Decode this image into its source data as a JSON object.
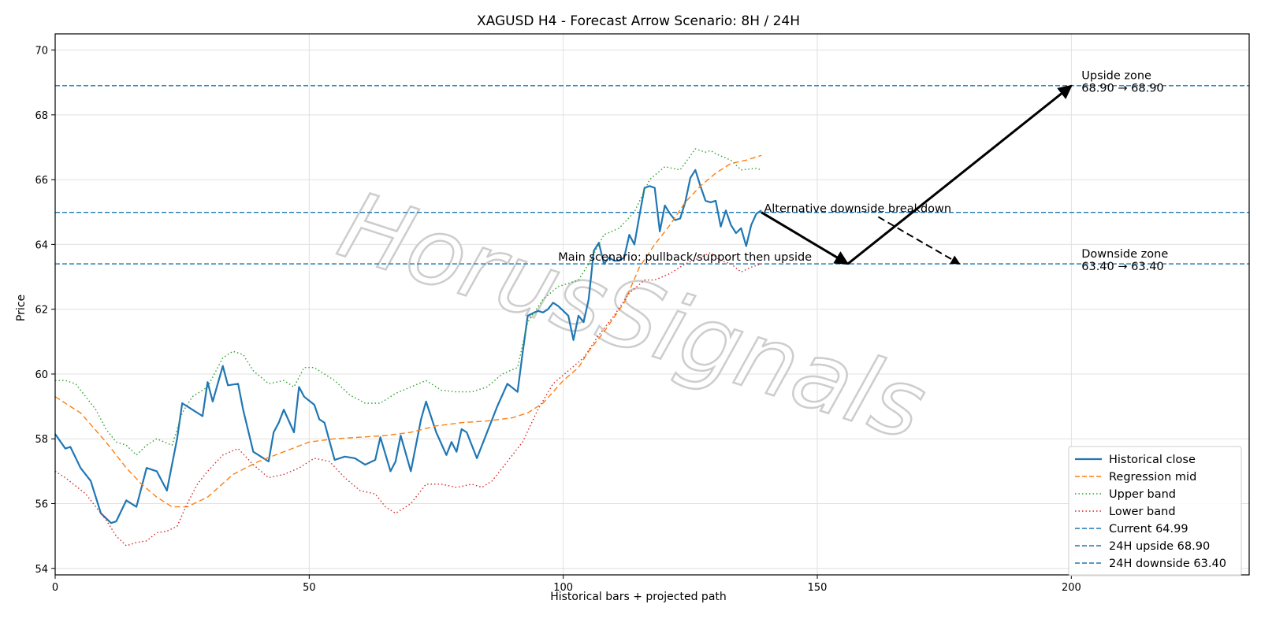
{
  "chart_data": {
    "type": "line",
    "title": "XAGUSD H4 - Forecast Arrow Scenario: 8H / 24H",
    "xlabel": "Historical bars + projected path",
    "ylabel": "Price",
    "xlim": [
      0,
      235
    ],
    "ylim": [
      53.8,
      70.5
    ],
    "xticks": [
      0,
      50,
      100,
      150,
      200
    ],
    "yticks": [
      54,
      56,
      58,
      60,
      62,
      64,
      66,
      68,
      70
    ],
    "grid": true,
    "legend_position": "lower-right",
    "watermark": "HorusSignals",
    "series": [
      {
        "name": "Historical close",
        "color": "#1f77b4",
        "style": "solid",
        "x": [
          0,
          2,
          3,
          5,
          7,
          9,
          11,
          12,
          14,
          16,
          18,
          20,
          22,
          24,
          25,
          27,
          29,
          30,
          31,
          33,
          34,
          36,
          37,
          39,
          40,
          42,
          43,
          44,
          45,
          47,
          48,
          49,
          51,
          52,
          53,
          55,
          57,
          59,
          61,
          63,
          64,
          66,
          67,
          68,
          70,
          72,
          73,
          75,
          77,
          78,
          79,
          80,
          81,
          83,
          85,
          87,
          89,
          91,
          92,
          93,
          95,
          96,
          97,
          98,
          99,
          100,
          101,
          102,
          103,
          104,
          105,
          106,
          107,
          108,
          109,
          110,
          111,
          112,
          113,
          114,
          115,
          116,
          117,
          118,
          119,
          120,
          121,
          122,
          123,
          124,
          125,
          126,
          127,
          128,
          129,
          130,
          131,
          132,
          133,
          134,
          135,
          136,
          137,
          138,
          139
        ],
        "values": [
          58.15,
          57.7,
          57.75,
          57.1,
          56.7,
          55.7,
          55.4,
          55.45,
          56.1,
          55.9,
          57.1,
          57.0,
          56.4,
          58.0,
          59.1,
          58.9,
          58.7,
          59.75,
          59.15,
          60.25,
          59.65,
          59.7,
          58.9,
          57.6,
          57.5,
          57.3,
          58.2,
          58.5,
          58.9,
          58.2,
          59.6,
          59.3,
          59.05,
          58.6,
          58.5,
          57.35,
          57.45,
          57.4,
          57.2,
          57.35,
          58.05,
          57.0,
          57.3,
          58.1,
          57.0,
          58.6,
          59.15,
          58.2,
          57.5,
          57.9,
          57.6,
          58.3,
          58.2,
          57.4,
          58.2,
          59.0,
          59.7,
          59.45,
          60.65,
          61.8,
          61.95,
          61.9,
          62.0,
          62.2,
          62.1,
          61.95,
          61.8,
          61.05,
          61.8,
          61.6,
          62.3,
          63.8,
          64.05,
          63.4,
          63.6,
          63.5,
          63.5,
          63.6,
          64.3,
          64.0,
          64.9,
          65.75,
          65.8,
          65.75,
          64.4,
          65.2,
          64.95,
          64.75,
          64.8,
          65.3,
          66.05,
          66.3,
          65.8,
          65.35,
          65.3,
          65.35,
          64.55,
          65.05,
          64.6,
          64.35,
          64.5,
          63.95,
          64.6,
          64.95,
          65.05
        ]
      },
      {
        "name": "Regression mid",
        "color": "#ff7f0e",
        "style": "dashed",
        "x": [
          0,
          3,
          5,
          10,
          14,
          17,
          20,
          23,
          26,
          30,
          35,
          40,
          45,
          50,
          55,
          60,
          65,
          70,
          75,
          80,
          85,
          90,
          93,
          96,
          100,
          103,
          105,
          108,
          112,
          115,
          118,
          121,
          124,
          127,
          130,
          133,
          136,
          139
        ],
        "values": [
          59.3,
          59.0,
          58.8,
          57.9,
          57.1,
          56.6,
          56.2,
          55.9,
          55.9,
          56.2,
          56.9,
          57.3,
          57.6,
          57.9,
          58.0,
          58.05,
          58.1,
          58.2,
          58.4,
          58.5,
          58.55,
          58.65,
          58.8,
          59.1,
          59.8,
          60.2,
          60.7,
          61.3,
          62.2,
          63.3,
          64.0,
          64.6,
          65.3,
          65.8,
          66.2,
          66.5,
          66.6,
          66.75
        ]
      },
      {
        "name": "Upper band",
        "color": "#2ca02c",
        "style": "dotted",
        "x": [
          0,
          2,
          4,
          6,
          8,
          10,
          12,
          14,
          16,
          18,
          20,
          23,
          25,
          27,
          30,
          33,
          35,
          37,
          39,
          42,
          45,
          47,
          49,
          51,
          55,
          58,
          61,
          64,
          67,
          70,
          73,
          76,
          79,
          82,
          85,
          88,
          91,
          93,
          96,
          99,
          101,
          103,
          105,
          108,
          111,
          114,
          117,
          120,
          123,
          126,
          127,
          128,
          129,
          130,
          133,
          135,
          138,
          139
        ],
        "values": [
          59.8,
          59.8,
          59.7,
          59.3,
          58.9,
          58.3,
          57.9,
          57.8,
          57.5,
          57.8,
          58.0,
          57.8,
          58.8,
          59.3,
          59.6,
          60.5,
          60.7,
          60.6,
          60.1,
          59.7,
          59.8,
          59.6,
          60.2,
          60.2,
          59.8,
          59.35,
          59.1,
          59.1,
          59.4,
          59.6,
          59.8,
          59.5,
          59.45,
          59.45,
          59.6,
          60.0,
          60.2,
          61.6,
          62.3,
          62.7,
          62.8,
          62.9,
          63.4,
          64.3,
          64.5,
          65.0,
          66.0,
          66.4,
          66.3,
          66.95,
          66.9,
          66.85,
          66.9,
          66.8,
          66.6,
          66.3,
          66.35,
          66.3
        ]
      },
      {
        "name": "Lower band",
        "color": "#d62728",
        "style": "dotted",
        "x": [
          0,
          2,
          4,
          6,
          8,
          10,
          12,
          14,
          16,
          18,
          20,
          22,
          24,
          26,
          28,
          30,
          33,
          36,
          39,
          42,
          45,
          48,
          51,
          54,
          57,
          60,
          63,
          65,
          67,
          70,
          73,
          76,
          79,
          82,
          84,
          86,
          89,
          92,
          95,
          98,
          101,
          104,
          107,
          110,
          113,
          116,
          118,
          121,
          124,
          127,
          129,
          131,
          133,
          135,
          137,
          139
        ],
        "values": [
          57.0,
          56.8,
          56.55,
          56.3,
          55.9,
          55.5,
          55.0,
          54.7,
          54.8,
          54.85,
          55.1,
          55.15,
          55.3,
          56.0,
          56.6,
          57.0,
          57.5,
          57.7,
          57.2,
          56.8,
          56.9,
          57.1,
          57.4,
          57.3,
          56.8,
          56.4,
          56.3,
          55.9,
          55.7,
          56.0,
          56.6,
          56.6,
          56.5,
          56.6,
          56.5,
          56.7,
          57.3,
          57.9,
          58.9,
          59.7,
          60.1,
          60.5,
          61.2,
          61.8,
          62.5,
          62.9,
          62.9,
          63.1,
          63.4,
          63.6,
          63.75,
          63.5,
          63.4,
          63.15,
          63.3,
          63.4
        ]
      }
    ],
    "reference_lines": [
      {
        "name": "Current 64.99",
        "value": 64.99,
        "color": "#1f77b4",
        "style": "dashed"
      },
      {
        "name": "24H upside 68.90",
        "value": 68.9,
        "color": "#1f77b4",
        "style": "dashed"
      },
      {
        "name": "24H downside 63.40",
        "value": 63.4,
        "color": "#1f77b4",
        "style": "dashed"
      }
    ],
    "arrows": [
      {
        "label": "Main scenario: pullback/support then upside",
        "style": "solid",
        "points": [
          [
            139,
            64.99
          ],
          [
            156,
            63.4
          ],
          [
            200,
            68.9
          ]
        ]
      },
      {
        "label": "Alternative downside breakdown",
        "style": "dashed",
        "points": [
          [
            162,
            64.85
          ],
          [
            178,
            63.4
          ]
        ]
      }
    ],
    "annotations": [
      {
        "text": "Alternative downside breakdown",
        "x": 139.5,
        "y": 65.0
      },
      {
        "text": "Main scenario: pullback/support then upside",
        "x": 99,
        "y": 63.5
      },
      {
        "text": "Upside zone",
        "x": 202,
        "y": 69.1,
        "x_label": "68.90 → 68.90"
      },
      {
        "text": "Downside zone",
        "x": 202,
        "y": 63.6,
        "x_label": "63.40 → 63.40"
      }
    ]
  }
}
